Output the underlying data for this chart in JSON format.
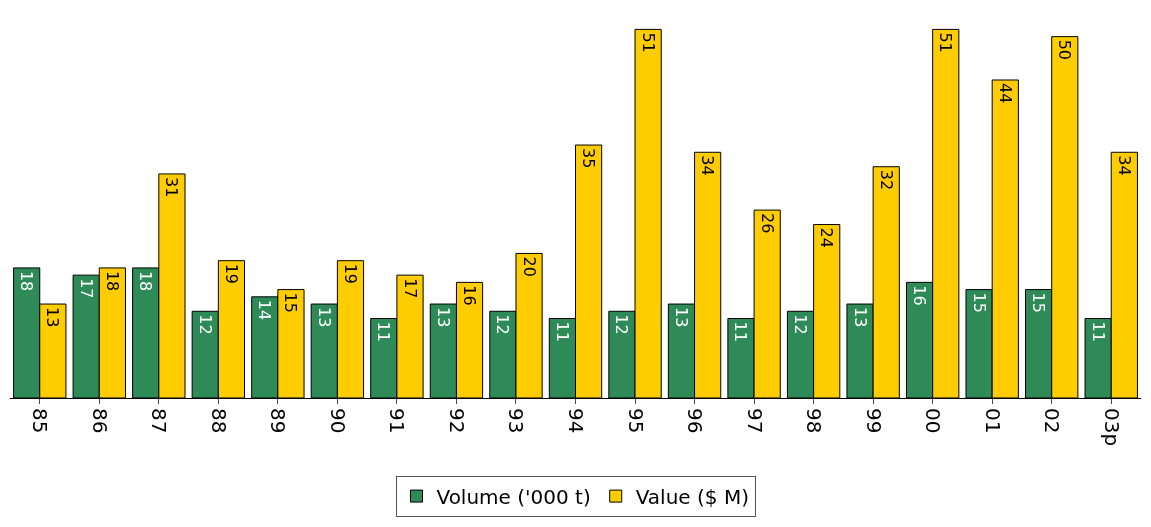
{
  "chart_data": {
    "type": "bar",
    "categories": [
      "85",
      "86",
      "87",
      "88",
      "89",
      "90",
      "91",
      "92",
      "93",
      "94",
      "95",
      "96",
      "97",
      "98",
      "99",
      "00",
      "01",
      "02",
      "03p"
    ],
    "series": [
      {
        "name": "Volume ('000 t)",
        "color": "#2e8b57",
        "values": [
          18,
          17,
          18,
          12,
          14,
          13,
          11,
          13,
          12,
          11,
          12,
          13,
          11,
          12,
          13,
          16,
          15,
          15,
          11
        ]
      },
      {
        "name": "Value ($ M)",
        "color": "#ffcc00",
        "values": [
          13,
          18,
          31,
          19,
          15,
          19,
          17,
          16,
          20,
          35,
          51,
          34,
          26,
          24,
          32,
          51,
          44,
          50,
          34
        ]
      }
    ],
    "data_labels": true,
    "legend": "bottom"
  }
}
